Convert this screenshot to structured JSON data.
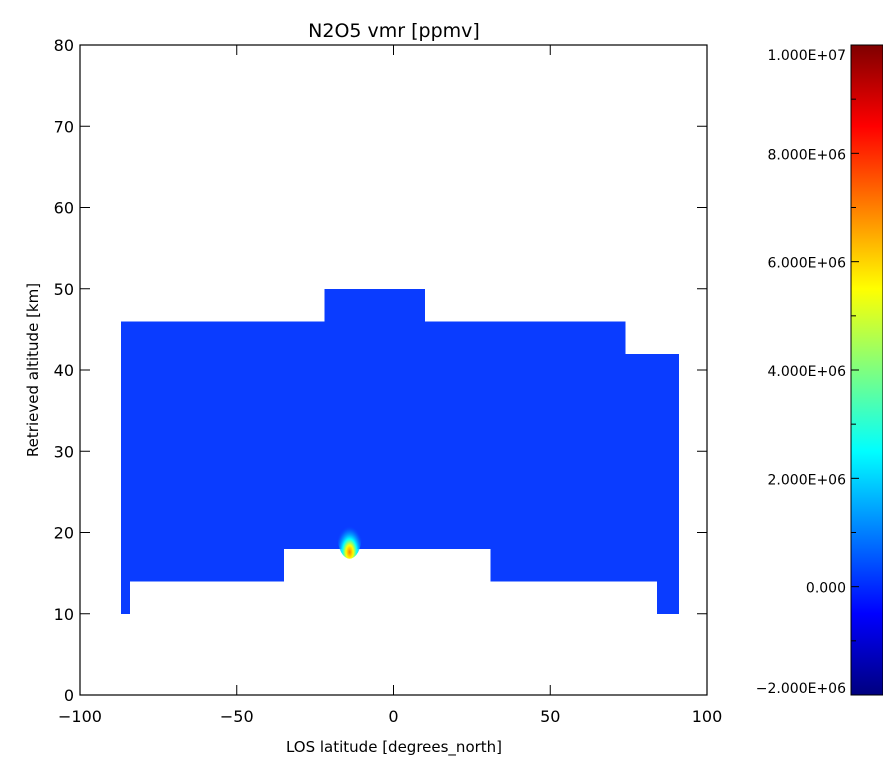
{
  "chart_data": {
    "type": "heatmap",
    "title": "N2O5 vmr [ppmv]",
    "xlabel": "LOS latitude [degrees_north]",
    "ylabel": "Retrieved altitude [km]",
    "xlim": [
      -100,
      100
    ],
    "ylim": [
      0,
      80
    ],
    "x_ticks": [
      -100,
      -50,
      0,
      50,
      100
    ],
    "x_tick_labels": [
      "−100",
      "−50",
      "0",
      "50",
      "100"
    ],
    "y_ticks": [
      0,
      10,
      20,
      30,
      40,
      50,
      60,
      70,
      80
    ],
    "y_tick_labels": [
      "0",
      "10",
      "20",
      "30",
      "40",
      "50",
      "60",
      "70",
      "80"
    ],
    "grid": false,
    "colorbar": {
      "min": -2000000,
      "max": 10000000,
      "colormap": "rainbow",
      "ticks": [
        -2000000,
        0,
        2000000,
        4000000,
        6000000,
        8000000,
        10000000
      ],
      "tick_labels": [
        "−2.000E+06",
        "0.000",
        "2.000E+06",
        "4.000E+06",
        "6.000E+06",
        "8.000E+06",
        "1.000E+07"
      ],
      "colors": [
        "#00007f",
        "#0000ff",
        "#007fff",
        "#00ffff",
        "#7fff7f",
        "#ffff00",
        "#ff7f00",
        "#ff0000",
        "#7f0000"
      ]
    },
    "background_value": 0,
    "background_color": "#0a3cff",
    "data_region": [
      {
        "lat_min": -87,
        "lat_max": -84,
        "alt_min": 10,
        "alt_max": 46
      },
      {
        "lat_min": -84,
        "lat_max": -35,
        "alt_min": 14,
        "alt_max": 46
      },
      {
        "lat_min": -35,
        "lat_max": -22,
        "alt_min": 18,
        "alt_max": 46
      },
      {
        "lat_min": -22,
        "lat_max": 10,
        "alt_min": 18,
        "alt_max": 50
      },
      {
        "lat_min": 10,
        "lat_max": 31,
        "alt_min": 18,
        "alt_max": 46
      },
      {
        "lat_min": 31,
        "lat_max": 74,
        "alt_min": 14,
        "alt_max": 46
      },
      {
        "lat_min": 74,
        "lat_max": 84,
        "alt_min": 14,
        "alt_max": 42
      },
      {
        "lat_min": 84,
        "lat_max": 91,
        "alt_min": 10,
        "alt_max": 42
      }
    ],
    "hotspot": {
      "lat": -14,
      "alt": 18.5,
      "peak_value": 6000000
    }
  }
}
